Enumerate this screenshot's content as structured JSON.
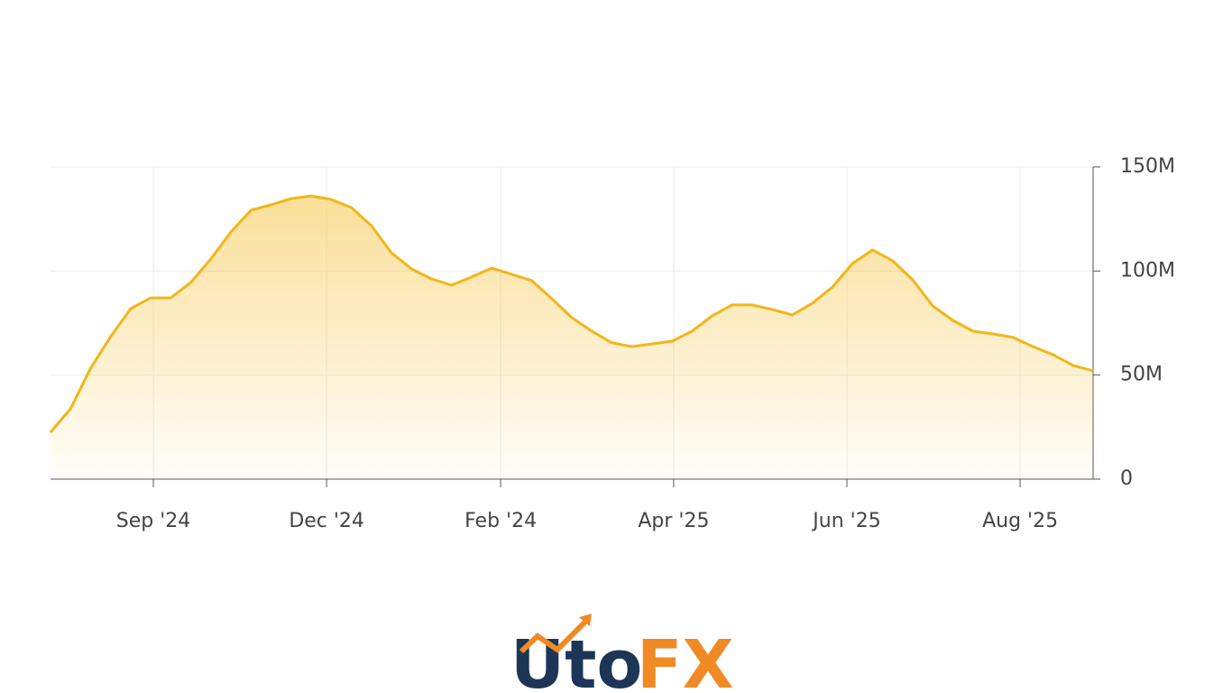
{
  "chart_data": {
    "type": "area",
    "x": [
      0,
      1,
      2,
      3,
      4,
      5,
      6,
      7,
      8,
      9,
      10,
      11,
      12,
      13,
      14,
      15,
      16,
      17,
      18,
      19,
      20,
      21,
      22,
      23,
      24,
      25,
      26,
      27,
      28,
      29,
      30,
      31,
      32,
      33,
      34,
      35,
      36,
      37,
      38,
      39,
      40,
      41,
      42,
      43,
      44,
      45,
      46,
      47,
      48,
      49,
      50,
      51,
      52
    ],
    "series": [
      {
        "color": "#f2b619",
        "values": [
          22.5,
          33.8,
          53.3,
          68.5,
          81.9,
          87.1,
          87.1,
          94.5,
          105.8,
          118.8,
          129.2,
          131.8,
          134.8,
          136.1,
          134.4,
          130.5,
          121.8,
          108.8,
          101,
          96.2,
          93.2,
          97.1,
          101.4,
          98.4,
          95.4,
          86.7,
          77.6,
          71.1,
          65.5,
          63.7,
          65,
          66.3,
          71.1,
          78.5,
          83.7,
          83.7,
          81.5,
          78.9,
          84.5,
          92.3,
          103.6,
          110.1,
          104.9,
          95.8,
          83.2,
          76.3,
          71.1,
          69.8,
          68.1,
          63.7,
          59.8,
          54.6,
          52
        ]
      }
    ],
    "xlim": [
      0,
      52
    ],
    "xticks": [
      {
        "value": 5.13,
        "label": "Sep '24"
      },
      {
        "value": 13.77,
        "label": "Dec '24"
      },
      {
        "value": 22.45,
        "label": "Feb '24"
      },
      {
        "value": 31.08,
        "label": "Apr '25"
      },
      {
        "value": 39.72,
        "label": "Jun '25"
      },
      {
        "value": 48.36,
        "label": "Aug '25"
      }
    ],
    "ylim": [
      0,
      150
    ],
    "yticks": [
      0,
      {
        "value": 50,
        "label": "50M"
      },
      {
        "value": 100,
        "label": "100M"
      },
      {
        "value": 150,
        "label": "150M"
      }
    ],
    "grid": true
  },
  "logo": [
    "Uto",
    "FX"
  ]
}
